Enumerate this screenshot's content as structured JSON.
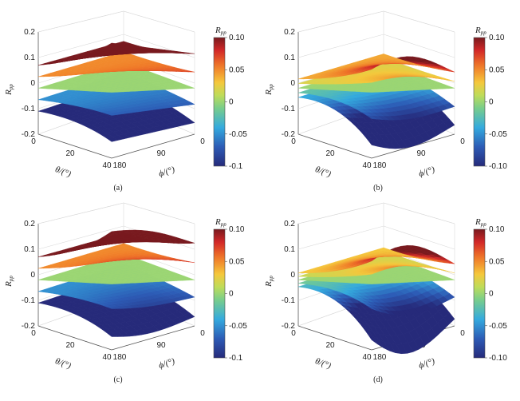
{
  "chart_data": [
    {
      "panel": "(a)",
      "type": "surface3d",
      "zlabel": "R_pp",
      "xlabel": "θ/(°)",
      "ylabel": "ϕ/(°)",
      "theta_ticks": [
        "0",
        "20",
        "40"
      ],
      "phi_ticks": [
        "180",
        "90",
        "0"
      ],
      "z_ticks": [
        "0.2",
        "0.1",
        "0",
        "-0.1",
        "-0.2"
      ],
      "zlim": [
        -0.2,
        0.2
      ],
      "colorbar_title": "R_pp",
      "colorbar_ticks": [
        "0.10",
        "0.05",
        "0",
        "-0.05",
        "-0.1"
      ],
      "surfaces": [
        {
          "base": 0.1,
          "theta_coef": 0.05,
          "phi_coef": 0.0
        },
        {
          "base": 0.05,
          "theta_coef": 0.02,
          "phi_coef": 0.0
        },
        {
          "base": 0.0,
          "theta_coef": 0.0,
          "phi_coef": 0.0
        },
        {
          "base": -0.05,
          "theta_coef": -0.02,
          "phi_coef": 0.0
        },
        {
          "base": -0.1,
          "theta_coef": -0.05,
          "phi_coef": 0.0
        }
      ]
    },
    {
      "panel": "(b)",
      "type": "surface3d",
      "zlabel": "R_pp",
      "xlabel": "θ/(°)",
      "ylabel": "ϕ/(°)",
      "theta_ticks": [
        "0",
        "20",
        "40"
      ],
      "phi_ticks": [
        "180",
        "90",
        "0"
      ],
      "z_ticks": [
        "0.2",
        "0.1",
        "0",
        "-0.1",
        "-0.2"
      ],
      "zlim": [
        -0.2,
        0.2
      ],
      "colorbar_title": "R_pp",
      "colorbar_ticks": [
        "0.10",
        "0.05",
        "0",
        "-0.05",
        "-0.10"
      ],
      "surfaces": [
        {
          "base": 0.04,
          "theta_coef": 0.03,
          "phi_coef": 0.05
        },
        {
          "base": 0.02,
          "theta_coef": 0.01,
          "phi_coef": 0.02
        },
        {
          "base": 0.0,
          "theta_coef": 0.0,
          "phi_coef": 0.0
        },
        {
          "base": -0.02,
          "theta_coef": -0.06,
          "phi_coef": -0.02
        },
        {
          "base": -0.04,
          "theta_coef": -0.12,
          "phi_coef": -0.04
        }
      ]
    },
    {
      "panel": "(c)",
      "type": "surface3d",
      "zlabel": "R_pp",
      "xlabel": "θ/(°)",
      "ylabel": "ϕ/(°)",
      "theta_ticks": [
        "0",
        "20",
        "40"
      ],
      "phi_ticks": [
        "180",
        "90",
        "0"
      ],
      "z_ticks": [
        "0.2",
        "0.1",
        "0",
        "-0.1",
        "-0.2"
      ],
      "zlim": [
        -0.2,
        0.2
      ],
      "colorbar_title": "R_pp",
      "colorbar_ticks": [
        "0.10",
        "0.05",
        "0",
        "-0.05",
        "-0.1"
      ],
      "surfaces": [
        {
          "base": 0.1,
          "theta_coef": 0.06,
          "phi_coef": 0.02
        },
        {
          "base": 0.05,
          "theta_coef": 0.025,
          "phi_coef": 0.01
        },
        {
          "base": 0.0,
          "theta_coef": 0.0,
          "phi_coef": 0.0
        },
        {
          "base": -0.05,
          "theta_coef": -0.025,
          "phi_coef": -0.01
        },
        {
          "base": -0.1,
          "theta_coef": -0.06,
          "phi_coef": -0.02
        }
      ]
    },
    {
      "panel": "(d)",
      "type": "surface3d",
      "zlabel": "R_pp",
      "xlabel": "θ/(°)",
      "ylabel": "ϕ/(°)",
      "theta_ticks": [
        "0",
        "20",
        "40"
      ],
      "phi_ticks": [
        "180",
        "90",
        "0"
      ],
      "z_ticks": [
        "0.2",
        "0.1",
        "0",
        "-0.1",
        "-0.2"
      ],
      "zlim": [
        -0.2,
        0.2
      ],
      "colorbar_title": "R_pp",
      "colorbar_ticks": [
        "0.10",
        "0.05",
        "0",
        "-0.05",
        "-0.10"
      ],
      "surfaces": [
        {
          "base": 0.03,
          "theta_coef": 0.04,
          "phi_coef": 0.06
        },
        {
          "base": 0.015,
          "theta_coef": 0.015,
          "phi_coef": 0.03
        },
        {
          "base": 0.0,
          "theta_coef": 0.0,
          "phi_coef": 0.0
        },
        {
          "base": -0.015,
          "theta_coef": -0.06,
          "phi_coef": -0.04
        },
        {
          "base": -0.03,
          "theta_coef": -0.14,
          "phi_coef": -0.08
        }
      ]
    }
  ]
}
